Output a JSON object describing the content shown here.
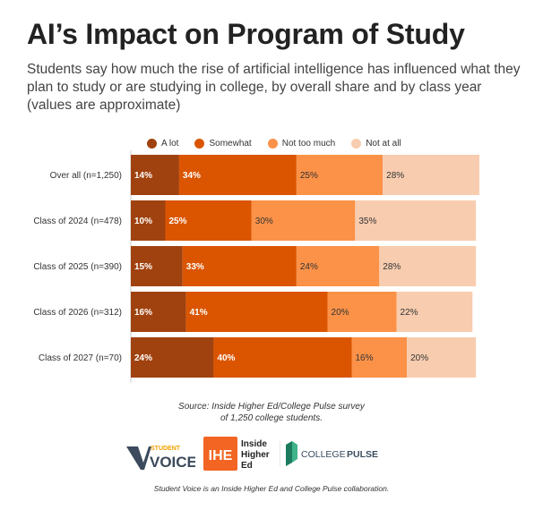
{
  "header": {
    "title": "AI’s Impact on Program of Study",
    "subtitle": "Students say how much the rise of artificial intelligence has influenced what they plan to study or are studying in college, by overall share and by class year (values are approximate)"
  },
  "colors": {
    "a_lot": "#a0420f",
    "somewhat": "#db5500",
    "not_too_much": "#fb9248",
    "not_at_all": "#f8ccaf",
    "dark_label": "#ffffff",
    "light_label": "#333333"
  },
  "chart_data": {
    "type": "bar",
    "orientation": "horizontal",
    "stacked": true,
    "categories": [
      "Over all (n=1,250)",
      "Class of 2024 (n=478)",
      "Class of 2025 (n=390)",
      "Class of 2026 (n=312)",
      "Class of 2027 (n=70)"
    ],
    "series": [
      {
        "name": "A lot",
        "color": "#a0420f",
        "values": [
          14,
          10,
          15,
          16,
          24
        ],
        "labels": [
          "14%",
          "10%",
          "15%",
          "16%",
          "24%"
        ]
      },
      {
        "name": "Somewhat",
        "color": "#db5500",
        "values": [
          34,
          25,
          33,
          41,
          40
        ],
        "labels": [
          "34%",
          "25%",
          "33%",
          "41%",
          "40%"
        ]
      },
      {
        "name": "Not too much",
        "color": "#fb9248",
        "values": [
          25,
          30,
          24,
          20,
          16
        ],
        "labels": [
          "25%",
          "30%",
          "24%",
          "20%",
          "16%"
        ]
      },
      {
        "name": "Not at all",
        "color": "#f8ccaf",
        "values": [
          28,
          35,
          28,
          22,
          20
        ],
        "labels": [
          "28%",
          "35%",
          "28%",
          "22%",
          "20%"
        ]
      }
    ],
    "xlim": [
      0,
      101
    ],
    "grid": false,
    "legend_position": "top"
  },
  "footer": {
    "source_line1": "Source: Inside Higher Ed/College Pulse survey",
    "source_line2": "of 1,250 college students.",
    "collab": "Student Voice is an Inside Higher Ed and College Pulse collaboration."
  },
  "logos": {
    "student_voice": {
      "top": "STUDENT",
      "bottom": "VOICE"
    },
    "ihe": {
      "mark": "IHE",
      "line1": "Inside",
      "line2": "Higher",
      "line3": "Ed"
    },
    "college_pulse": {
      "word1": "COLLEGE",
      "word2": "PULSE"
    }
  }
}
